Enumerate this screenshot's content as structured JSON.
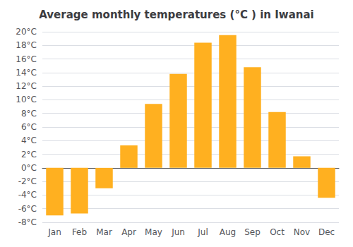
{
  "chart_data": {
    "type": "bar",
    "title": "Average monthly temperatures (°C ) in Iwanai",
    "categories": [
      "Jan",
      "Feb",
      "Mar",
      "Apr",
      "May",
      "Jun",
      "Jul",
      "Aug",
      "Sep",
      "Oct",
      "Nov",
      "Dec"
    ],
    "values": [
      -7.0,
      -6.7,
      -3.0,
      3.3,
      9.4,
      13.8,
      18.4,
      19.5,
      14.8,
      8.2,
      1.7,
      -4.4
    ],
    "color": "#FFB020",
    "ylim": [
      -8,
      20
    ],
    "yticks": [
      {
        "value": -8,
        "label": "-8°C"
      },
      {
        "value": -6,
        "label": "-6°C"
      },
      {
        "value": -4,
        "label": "-4°C"
      },
      {
        "value": -2,
        "label": "-2°C"
      },
      {
        "value": 0,
        "label": "0°C"
      },
      {
        "value": 2,
        "label": "2°C"
      },
      {
        "value": 4,
        "label": "4°C"
      },
      {
        "value": 6,
        "label": "6°C"
      },
      {
        "value": 8,
        "label": "8°C"
      },
      {
        "value": 10,
        "label": "10°C"
      },
      {
        "value": 12,
        "label": "12°C"
      },
      {
        "value": 14,
        "label": "14°C"
      },
      {
        "value": 16,
        "label": "16°C"
      },
      {
        "value": 18,
        "label": "18°C"
      },
      {
        "value": 20,
        "label": "20°C"
      }
    ],
    "grid": true
  }
}
